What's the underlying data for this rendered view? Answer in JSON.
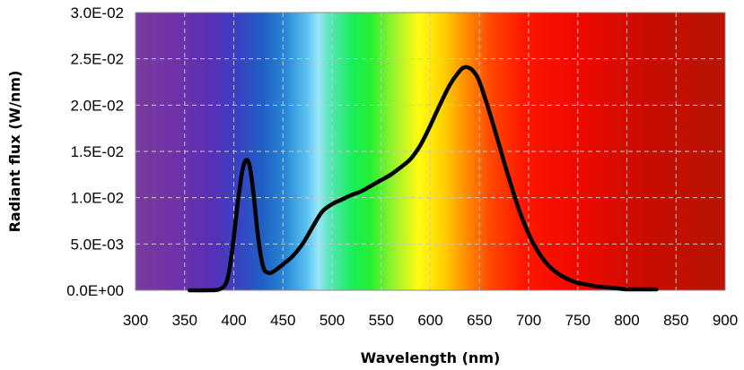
{
  "chart_data": {
    "type": "line",
    "title": "",
    "xlabel": "Wavelength (nm)",
    "ylabel": "Radiant flux (W/nm)",
    "xlim": [
      300,
      900
    ],
    "ylim": [
      0,
      0.03
    ],
    "x_ticks": [
      300,
      350,
      400,
      450,
      500,
      550,
      600,
      650,
      700,
      750,
      800,
      850,
      900
    ],
    "x_tick_labels": [
      "300",
      "350",
      "400",
      "450",
      "500",
      "550",
      "600",
      "650",
      "700",
      "750",
      "800",
      "850",
      "900"
    ],
    "y_ticks": [
      0,
      0.005,
      0.01,
      0.015,
      0.02,
      0.025,
      0.03
    ],
    "y_tick_labels": [
      "0.0E+00",
      "5.0E-03",
      "1.0E-02",
      "1.5E-02",
      "2.0E-02",
      "2.5E-02",
      "3.0E-02"
    ],
    "grid": "dashed",
    "background": "visible-spectrum gradient",
    "series": [
      {
        "color": "#000000",
        "x": [
          355,
          370,
          385,
          393,
          398,
          403,
          408,
          412,
          416,
          420,
          425,
          430,
          435,
          440,
          450,
          460,
          470,
          480,
          490,
          500,
          510,
          520,
          530,
          540,
          550,
          560,
          570,
          580,
          590,
          600,
          610,
          620,
          630,
          635,
          640,
          645,
          650,
          660,
          670,
          680,
          690,
          700,
          710,
          720,
          730,
          740,
          750,
          760,
          770,
          780,
          790,
          800,
          815,
          830
        ],
        "y": [
          0.0,
          0.0,
          0.0001,
          0.001,
          0.004,
          0.0085,
          0.0125,
          0.014,
          0.0135,
          0.0105,
          0.0055,
          0.0025,
          0.0019,
          0.002,
          0.0028,
          0.0037,
          0.005,
          0.0068,
          0.0085,
          0.0093,
          0.0098,
          0.0103,
          0.0107,
          0.0113,
          0.0119,
          0.0125,
          0.0133,
          0.0142,
          0.0157,
          0.0178,
          0.0201,
          0.0222,
          0.0237,
          0.0241,
          0.024,
          0.0235,
          0.0225,
          0.0193,
          0.0157,
          0.0121,
          0.0088,
          0.0061,
          0.0041,
          0.0027,
          0.0018,
          0.0012,
          0.0008,
          0.0006,
          0.0004,
          0.0003,
          0.0002,
          0.0001,
          0.0001,
          0.0001
        ]
      }
    ]
  }
}
